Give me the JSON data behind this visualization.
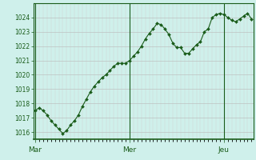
{
  "background_color": "#cff0eb",
  "grid_color": "#b8b8b8",
  "grid_minor_color": "#d0d0d0",
  "line_color": "#1a5c1a",
  "marker_color": "#1a5c1a",
  "axis_color": "#1a5c1a",
  "tick_label_color": "#1a5c1a",
  "ylim": [
    1015.5,
    1025.0
  ],
  "yticks": [
    1016,
    1017,
    1018,
    1019,
    1020,
    1021,
    1022,
    1023,
    1024
  ],
  "xtick_labels": [
    "Mar",
    "Mer",
    "Jeu"
  ],
  "xtick_positions": [
    0,
    24,
    48
  ],
  "xlim": [
    -0.5,
    55.5
  ],
  "vline_positions": [
    0,
    24,
    48
  ],
  "values": [
    1017.5,
    1017.7,
    1017.5,
    1017.2,
    1016.8,
    1016.5,
    1016.2,
    1015.9,
    1016.1,
    1016.5,
    1016.8,
    1017.2,
    1017.8,
    1018.3,
    1018.8,
    1019.2,
    1019.5,
    1019.8,
    1020.0,
    1020.3,
    1020.6,
    1020.8,
    1020.8,
    1020.8,
    1021.0,
    1021.3,
    1021.6,
    1022.0,
    1022.5,
    1022.9,
    1023.2,
    1023.6,
    1023.5,
    1023.2,
    1022.8,
    1022.2,
    1021.9,
    1021.9,
    1021.5,
    1021.5,
    1021.8,
    1022.1,
    1022.3,
    1023.0,
    1023.2,
    1024.0,
    1024.2,
    1024.3,
    1024.2,
    1024.0,
    1023.8,
    1023.7,
    1023.9,
    1024.1,
    1024.3,
    1023.9
  ]
}
